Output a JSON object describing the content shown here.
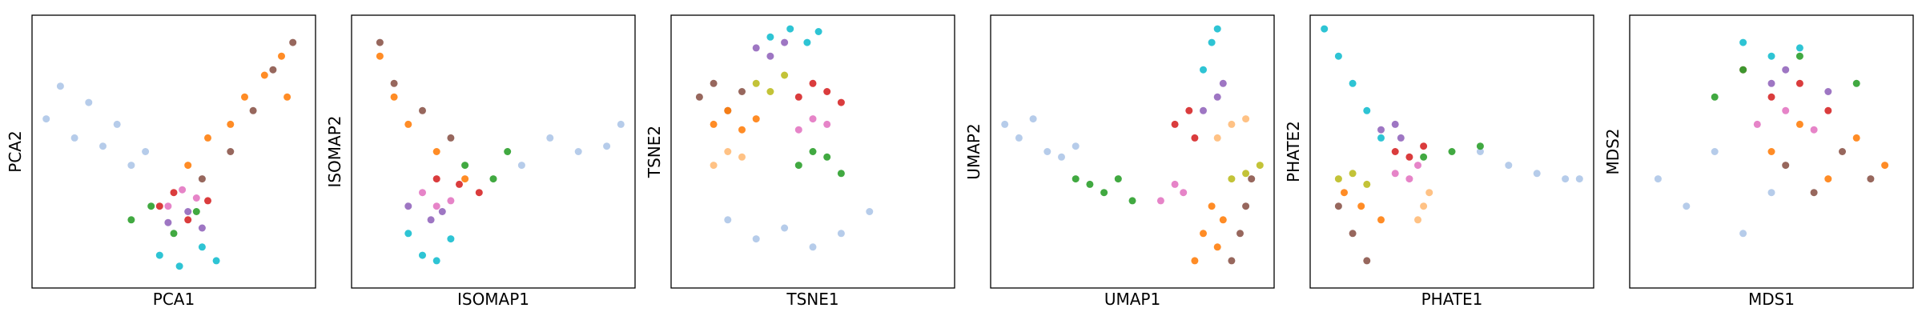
{
  "chart_data": [
    {
      "type": "scatter",
      "xlabel": "PCA1",
      "ylabel": "PCA2",
      "xticks": [],
      "yticks": [],
      "grid": false,
      "legend": "none",
      "series": [
        {
          "color": "#aec7e8",
          "x": [
            0.05,
            0.1,
            0.15,
            0.2,
            0.25,
            0.3,
            0.35,
            0.4
          ],
          "y": [
            0.62,
            0.74,
            0.55,
            0.68,
            0.52,
            0.6,
            0.45,
            0.5
          ]
        },
        {
          "color": "#ff7f0e",
          "x": [
            0.55,
            0.62,
            0.7,
            0.75,
            0.82,
            0.88,
            0.9
          ],
          "y": [
            0.45,
            0.55,
            0.6,
            0.7,
            0.78,
            0.85,
            0.7
          ]
        },
        {
          "color": "#8c564b",
          "x": [
            0.6,
            0.7,
            0.78,
            0.85,
            0.92
          ],
          "y": [
            0.4,
            0.5,
            0.65,
            0.8,
            0.9
          ]
        },
        {
          "color": "#2ca02c",
          "x": [
            0.35,
            0.42,
            0.5,
            0.58
          ],
          "y": [
            0.25,
            0.3,
            0.2,
            0.28
          ]
        },
        {
          "color": "#d62728",
          "x": [
            0.45,
            0.5,
            0.55,
            0.62
          ],
          "y": [
            0.3,
            0.35,
            0.25,
            0.32
          ]
        },
        {
          "color": "#e377c2",
          "x": [
            0.48,
            0.53,
            0.58
          ],
          "y": [
            0.3,
            0.36,
            0.33
          ]
        },
        {
          "color": "#9467bd",
          "x": [
            0.48,
            0.55,
            0.6
          ],
          "y": [
            0.24,
            0.28,
            0.22
          ]
        },
        {
          "color": "#17becf",
          "x": [
            0.45,
            0.52,
            0.6,
            0.65
          ],
          "y": [
            0.12,
            0.08,
            0.15,
            0.1
          ]
        }
      ]
    },
    {
      "type": "scatter",
      "xlabel": "ISOMAP1",
      "ylabel": "ISOMAP2",
      "xticks": [],
      "yticks": [],
      "grid": false,
      "legend": "none",
      "series": [
        {
          "color": "#aec7e8",
          "x": [
            0.6,
            0.7,
            0.8,
            0.9,
            0.95
          ],
          "y": [
            0.45,
            0.55,
            0.5,
            0.52,
            0.6
          ]
        },
        {
          "color": "#ff7f0e",
          "x": [
            0.1,
            0.15,
            0.2,
            0.3,
            0.4
          ],
          "y": [
            0.85,
            0.7,
            0.6,
            0.5,
            0.4
          ]
        },
        {
          "color": "#8c564b",
          "x": [
            0.1,
            0.15,
            0.25,
            0.35
          ],
          "y": [
            0.9,
            0.75,
            0.65,
            0.55
          ]
        },
        {
          "color": "#2ca02c",
          "x": [
            0.4,
            0.5,
            0.55
          ],
          "y": [
            0.45,
            0.4,
            0.5
          ]
        },
        {
          "color": "#d62728",
          "x": [
            0.3,
            0.38,
            0.45
          ],
          "y": [
            0.4,
            0.38,
            0.35
          ]
        },
        {
          "color": "#e377c2",
          "x": [
            0.25,
            0.3,
            0.35
          ],
          "y": [
            0.35,
            0.3,
            0.32
          ]
        },
        {
          "color": "#9467bd",
          "x": [
            0.2,
            0.28,
            0.32
          ],
          "y": [
            0.3,
            0.25,
            0.28
          ]
        },
        {
          "color": "#17becf",
          "x": [
            0.2,
            0.25,
            0.3,
            0.35
          ],
          "y": [
            0.2,
            0.12,
            0.1,
            0.18
          ]
        }
      ]
    },
    {
      "type": "scatter",
      "xlabel": "TSNE1",
      "ylabel": "TSNE2",
      "xticks": [],
      "yticks": [],
      "grid": false,
      "legend": "none",
      "series": [
        {
          "color": "#aec7e8",
          "x": [
            0.2,
            0.3,
            0.4,
            0.5,
            0.6,
            0.7
          ],
          "y": [
            0.25,
            0.18,
            0.22,
            0.15,
            0.2,
            0.28
          ]
        },
        {
          "color": "#17becf",
          "x": [
            0.35,
            0.42,
            0.48,
            0.52
          ],
          "y": [
            0.92,
            0.95,
            0.9,
            0.94
          ]
        },
        {
          "color": "#9467bd",
          "x": [
            0.3,
            0.35,
            0.4
          ],
          "y": [
            0.88,
            0.85,
            0.9
          ]
        },
        {
          "color": "#8c564b",
          "x": [
            0.1,
            0.15,
            0.2,
            0.25
          ],
          "y": [
            0.7,
            0.75,
            0.65,
            0.72
          ]
        },
        {
          "color": "#ff7f0e",
          "x": [
            0.15,
            0.2,
            0.25,
            0.3
          ],
          "y": [
            0.6,
            0.65,
            0.58,
            0.62
          ]
        },
        {
          "color": "#bcbd22",
          "x": [
            0.3,
            0.35,
            0.4
          ],
          "y": [
            0.75,
            0.72,
            0.78
          ]
        },
        {
          "color": "#d62728",
          "x": [
            0.45,
            0.5,
            0.55,
            0.6
          ],
          "y": [
            0.7,
            0.75,
            0.72,
            0.68
          ]
        },
        {
          "color": "#e377c2",
          "x": [
            0.45,
            0.5,
            0.55
          ],
          "y": [
            0.58,
            0.62,
            0.6
          ]
        },
        {
          "color": "#2ca02c",
          "x": [
            0.45,
            0.5,
            0.55,
            0.6
          ],
          "y": [
            0.45,
            0.5,
            0.48,
            0.42
          ]
        },
        {
          "color": "#ffbb78",
          "x": [
            0.15,
            0.2,
            0.25
          ],
          "y": [
            0.45,
            0.5,
            0.48
          ]
        }
      ]
    },
    {
      "type": "scatter",
      "xlabel": "UMAP1",
      "ylabel": "UMAP2",
      "xticks": [],
      "yticks": [],
      "grid": false,
      "legend": "none",
      "series": [
        {
          "color": "#aec7e8",
          "x": [
            0.05,
            0.1,
            0.15,
            0.2,
            0.25,
            0.3
          ],
          "y": [
            0.6,
            0.55,
            0.62,
            0.5,
            0.48,
            0.52
          ]
        },
        {
          "color": "#2ca02c",
          "x": [
            0.3,
            0.35,
            0.4,
            0.45,
            0.5
          ],
          "y": [
            0.4,
            0.38,
            0.35,
            0.4,
            0.32
          ]
        },
        {
          "color": "#e377c2",
          "x": [
            0.6,
            0.65,
            0.68
          ],
          "y": [
            0.32,
            0.38,
            0.35
          ]
        },
        {
          "color": "#ff7f0e",
          "x": [
            0.72,
            0.75,
            0.78,
            0.8,
            0.82
          ],
          "y": [
            0.1,
            0.2,
            0.3,
            0.15,
            0.25
          ]
        },
        {
          "color": "#8c564b",
          "x": [
            0.85,
            0.88,
            0.9,
            0.92
          ],
          "y": [
            0.1,
            0.2,
            0.3,
            0.4
          ]
        },
        {
          "color": "#d62728",
          "x": [
            0.65,
            0.7,
            0.72
          ],
          "y": [
            0.6,
            0.65,
            0.55
          ]
        },
        {
          "color": "#9467bd",
          "x": [
            0.75,
            0.8,
            0.82
          ],
          "y": [
            0.65,
            0.7,
            0.75
          ]
        },
        {
          "color": "#17becf",
          "x": [
            0.75,
            0.78,
            0.8
          ],
          "y": [
            0.8,
            0.9,
            0.95
          ]
        },
        {
          "color": "#ffbb78",
          "x": [
            0.8,
            0.85,
            0.9
          ],
          "y": [
            0.55,
            0.6,
            0.62
          ]
        },
        {
          "color": "#bcbd22",
          "x": [
            0.85,
            0.9,
            0.95
          ],
          "y": [
            0.4,
            0.42,
            0.45
          ]
        }
      ]
    },
    {
      "type": "scatter",
      "xlabel": "PHATE1",
      "ylabel": "PHATE2",
      "xticks": [],
      "yticks": [],
      "grid": false,
      "legend": "none",
      "series": [
        {
          "color": "#17becf",
          "x": [
            0.05,
            0.1,
            0.15,
            0.2,
            0.25
          ],
          "y": [
            0.95,
            0.85,
            0.75,
            0.65,
            0.55
          ]
        },
        {
          "color": "#aec7e8",
          "x": [
            0.6,
            0.7,
            0.8,
            0.9,
            0.95
          ],
          "y": [
            0.5,
            0.45,
            0.42,
            0.4,
            0.4
          ]
        },
        {
          "color": "#2ca02c",
          "x": [
            0.4,
            0.5,
            0.6
          ],
          "y": [
            0.48,
            0.5,
            0.52
          ]
        },
        {
          "color": "#8c564b",
          "x": [
            0.1,
            0.15,
            0.2
          ],
          "y": [
            0.3,
            0.2,
            0.1
          ]
        },
        {
          "color": "#ff7f0e",
          "x": [
            0.12,
            0.18,
            0.25
          ],
          "y": [
            0.35,
            0.3,
            0.25
          ]
        },
        {
          "color": "#d62728",
          "x": [
            0.3,
            0.35,
            0.4
          ],
          "y": [
            0.5,
            0.48,
            0.52
          ]
        },
        {
          "color": "#bcbd22",
          "x": [
            0.1,
            0.15,
            0.2
          ],
          "y": [
            0.4,
            0.42,
            0.38
          ]
        },
        {
          "color": "#e377c2",
          "x": [
            0.3,
            0.35,
            0.38
          ],
          "y": [
            0.42,
            0.4,
            0.45
          ]
        },
        {
          "color": "#9467bd",
          "x": [
            0.25,
            0.3,
            0.32
          ],
          "y": [
            0.58,
            0.6,
            0.55
          ]
        },
        {
          "color": "#ffbb78",
          "x": [
            0.38,
            0.4,
            0.42
          ],
          "y": [
            0.25,
            0.3,
            0.35
          ]
        }
      ]
    },
    {
      "type": "scatter",
      "xlabel": "MDS1",
      "ylabel": "MDS2",
      "xticks": [],
      "yticks": [],
      "grid": false,
      "legend": "none",
      "series": [
        {
          "color": "#aec7e8",
          "x": [
            0.1,
            0.2,
            0.3,
            0.4,
            0.5
          ],
          "y": [
            0.4,
            0.3,
            0.5,
            0.2,
            0.35
          ]
        },
        {
          "color": "#ff7f0e",
          "x": [
            0.5,
            0.6,
            0.7,
            0.8,
            0.9
          ],
          "y": [
            0.5,
            0.6,
            0.4,
            0.55,
            0.45
          ]
        },
        {
          "color": "#8c564b",
          "x": [
            0.55,
            0.65,
            0.75,
            0.85
          ],
          "y": [
            0.45,
            0.35,
            0.5,
            0.4
          ]
        },
        {
          "color": "#d62728",
          "x": [
            0.4,
            0.5,
            0.6,
            0.7
          ],
          "y": [
            0.8,
            0.7,
            0.75,
            0.65
          ]
        },
        {
          "color": "#2ca02c",
          "x": [
            0.3,
            0.4,
            0.6,
            0.8
          ],
          "y": [
            0.7,
            0.8,
            0.85,
            0.75
          ]
        },
        {
          "color": "#17becf",
          "x": [
            0.4,
            0.5,
            0.6
          ],
          "y": [
            0.9,
            0.85,
            0.88
          ]
        },
        {
          "color": "#e377c2",
          "x": [
            0.45,
            0.55,
            0.65
          ],
          "y": [
            0.6,
            0.65,
            0.58
          ]
        },
        {
          "color": "#9467bd",
          "x": [
            0.5,
            0.55,
            0.7
          ],
          "y": [
            0.75,
            0.8,
            0.72
          ]
        }
      ]
    }
  ]
}
